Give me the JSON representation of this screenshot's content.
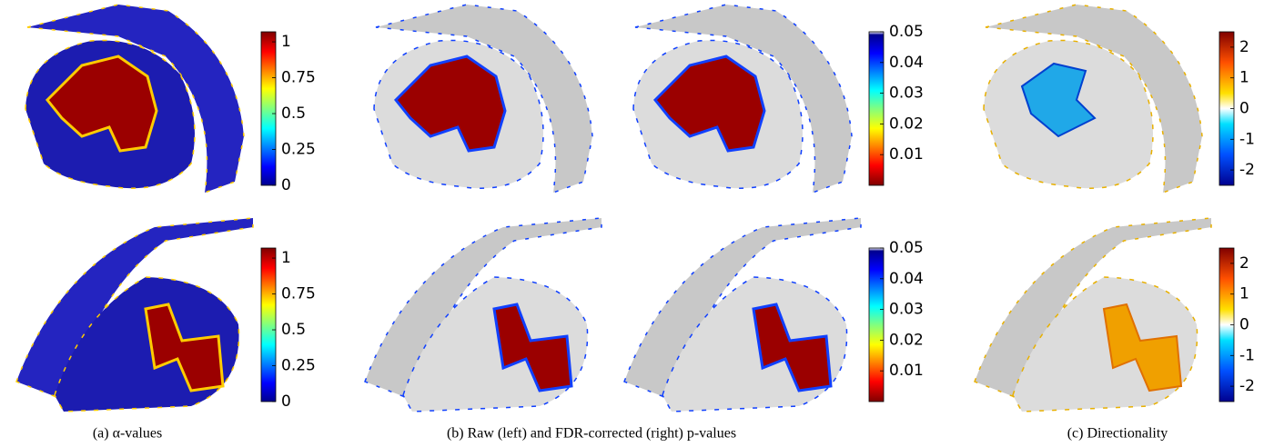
{
  "colorbars": [
    {
      "lim": [
        0,
        1.07
      ],
      "ticks": [
        0,
        0.25,
        0.5,
        0.75,
        1
      ]
    },
    {
      "lim": [
        0,
        0.05
      ],
      "ticks": [
        0.01,
        0.02,
        0.03,
        0.04,
        0.05
      ]
    },
    {
      "lim": [
        -2.5,
        2.5
      ],
      "ticks": [
        -2,
        -1,
        0,
        1,
        2
      ]
    },
    {
      "lim": [
        0,
        1.07
      ],
      "ticks": [
        0,
        0.25,
        0.5,
        0.75,
        1
      ]
    },
    {
      "lim": [
        0,
        0.05
      ],
      "ticks": [
        0.01,
        0.02,
        0.03,
        0.04,
        0.05
      ]
    },
    {
      "lim": [
        -2.5,
        2.5
      ],
      "ticks": [
        -2,
        -1,
        0,
        1,
        2
      ]
    }
  ],
  "captions": [
    "(a) α-values",
    "(b) Raw (left) and FDR-corrected (right) p-values",
    "(c) Directionality"
  ]
}
